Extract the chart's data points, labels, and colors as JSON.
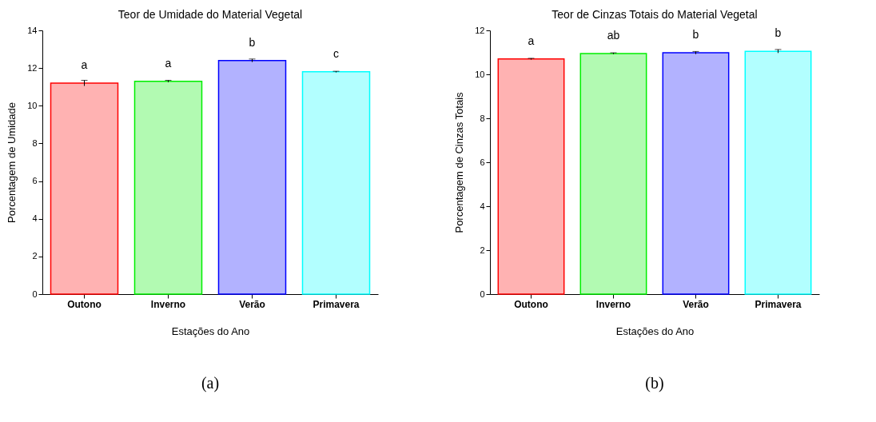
{
  "chart_data": [
    {
      "type": "bar",
      "title": "Teor de Umidade do Material Vegetal",
      "xlabel": "Estações do Ano",
      "ylabel": "Porcentagem de Umidade",
      "categories": [
        "Outono",
        "Inverno",
        "Verão",
        "Primavera"
      ],
      "values": [
        11.2,
        11.3,
        12.4,
        11.8
      ],
      "errors": [
        0.15,
        0.05,
        0.08,
        0.03
      ],
      "colors": [
        "#ff0000",
        "#00ee00",
        "#0000ff",
        "#00ffff"
      ],
      "ylim": [
        0,
        14
      ],
      "yticks": [
        0,
        2,
        4,
        6,
        8,
        10,
        12,
        14
      ],
      "annotations": [
        {
          "text": "a",
          "x": "Outono",
          "y": 11.2
        },
        {
          "text": "a",
          "x": "Inverno",
          "y": 11.3
        },
        {
          "text": "b",
          "x": "Verão",
          "y": 12.4
        },
        {
          "text": "c",
          "x": "Primavera",
          "y": 11.8
        },
        "(a)"
      ]
    },
    {
      "type": "bar",
      "title": "Teor de Cinzas Totais do Material Vegetal",
      "xlabel": "Estações do Ano",
      "ylabel": "Porcentagem de Cinzas Totais",
      "categories": [
        "Outono",
        "Inverno",
        "Verão",
        "Primavera"
      ],
      "values": [
        10.7,
        10.95,
        10.98,
        11.05
      ],
      "errors": [
        0.03,
        0.03,
        0.06,
        0.08
      ],
      "colors": [
        "#ff0000",
        "#00ee00",
        "#0000ff",
        "#00ffff"
      ],
      "ylim": [
        0,
        12
      ],
      "yticks": [
        0,
        2,
        4,
        6,
        8,
        10,
        12
      ],
      "annotations": [
        {
          "text": "a",
          "x": "Outono",
          "y": 10.7
        },
        {
          "text": "ab",
          "x": "Inverno",
          "y": 10.95
        },
        {
          "text": "b",
          "x": "Verão",
          "y": 10.98
        },
        {
          "text": "b",
          "x": "Primavera",
          "y": 11.05
        },
        "(b)"
      ]
    }
  ]
}
